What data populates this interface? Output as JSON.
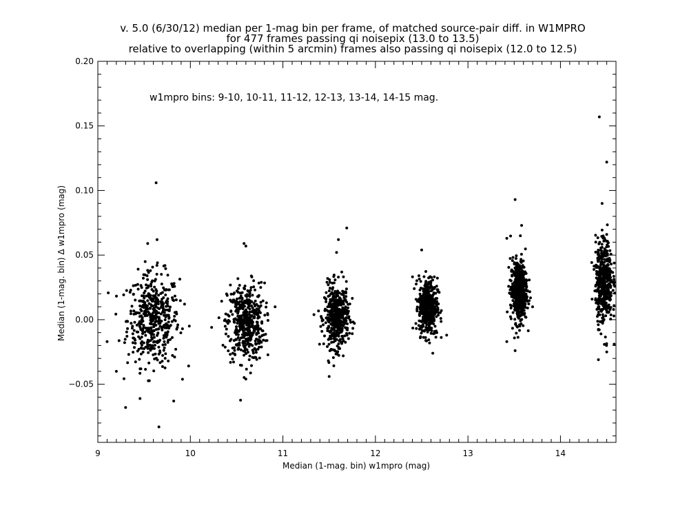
{
  "chart_data": {
    "type": "scatter",
    "title": [
      "v. 5.0 (6/30/12) median per 1-mag bin per frame, of matched source-pair diff. in W1MPRO",
      "for 477 frames passing qi noisepix (13.0 to 13.5)",
      "relative to overlapping (within 5 arcmin) frames also passing qi noisepix (12.0 to 12.5)"
    ],
    "annotation": "w1mpro bins: 9-10, 10-11, 11-12, 12-13, 13-14, 14-15 mag.",
    "xlabel": "Median (1-mag. bin) w1mpro (mag)",
    "ylabel": "Median (1-mag. bin) Δ w1mpro (mag)",
    "xlim": [
      9.0,
      14.6
    ],
    "ylim": [
      -0.095,
      0.2
    ],
    "xticks": [
      9,
      10,
      11,
      12,
      13,
      14
    ],
    "xtick_labels": [
      "9",
      "10",
      "11",
      "12",
      "13",
      "14"
    ],
    "yticks": [
      -0.05,
      0.0,
      0.05,
      0.1,
      0.15,
      0.2
    ],
    "ytick_labels": [
      "−0.05",
      "0.00",
      "0.05",
      "0.10",
      "0.15",
      "0.20"
    ],
    "grid": false,
    "marker": "filled-circle",
    "color": "#000000",
    "clusters": [
      {
        "bin": "9-10",
        "x_center": 9.6,
        "x_spread": 0.14,
        "y_center": 0.0,
        "y_spread": 0.018,
        "n": 470,
        "outliers": [
          [
            9.63,
            0.106
          ],
          [
            9.64,
            0.062
          ],
          [
            9.66,
            -0.083
          ],
          [
            9.3,
            -0.068
          ],
          [
            9.82,
            -0.063
          ],
          [
            9.1,
            -0.017
          ],
          [
            9.2,
            -0.04
          ]
        ]
      },
      {
        "bin": "10-11",
        "x_center": 10.6,
        "x_spread": 0.1,
        "y_center": -0.002,
        "y_spread": 0.015,
        "n": 470,
        "outliers": [
          [
            10.58,
            0.059
          ],
          [
            10.6,
            0.057
          ],
          [
            10.6,
            -0.046
          ],
          [
            10.23,
            -0.006
          ]
        ]
      },
      {
        "bin": "11-12",
        "x_center": 11.58,
        "x_spread": 0.065,
        "y_center": 0.002,
        "y_spread": 0.012,
        "n": 470,
        "outliers": [
          [
            11.69,
            0.071
          ],
          [
            11.6,
            0.062
          ],
          [
            11.5,
            -0.044
          ],
          [
            11.58,
            0.052
          ]
        ]
      },
      {
        "bin": "12-13",
        "x_center": 12.57,
        "x_spread": 0.05,
        "y_center": 0.01,
        "y_spread": 0.011,
        "n": 470,
        "outliers": [
          [
            12.5,
            0.054
          ],
          [
            12.62,
            -0.026
          ],
          [
            12.77,
            -0.012
          ],
          [
            12.47,
            0.034
          ]
        ]
      },
      {
        "bin": "13-14",
        "x_center": 13.55,
        "x_spread": 0.045,
        "y_center": 0.022,
        "y_spread": 0.012,
        "n": 470,
        "outliers": [
          [
            13.51,
            0.093
          ],
          [
            13.58,
            0.073
          ],
          [
            13.51,
            -0.024
          ],
          [
            13.42,
            -0.017
          ],
          [
            13.42,
            0.063
          ]
        ]
      },
      {
        "bin": "14-15",
        "x_center": 14.47,
        "x_spread": 0.045,
        "y_center": 0.03,
        "y_spread": 0.016,
        "n": 470,
        "outliers": [
          [
            14.42,
            0.157
          ],
          [
            14.5,
            0.122
          ],
          [
            14.45,
            0.09
          ],
          [
            14.41,
            -0.031
          ],
          [
            14.5,
            -0.025
          ],
          [
            14.58,
            -0.019
          ]
        ]
      }
    ]
  }
}
